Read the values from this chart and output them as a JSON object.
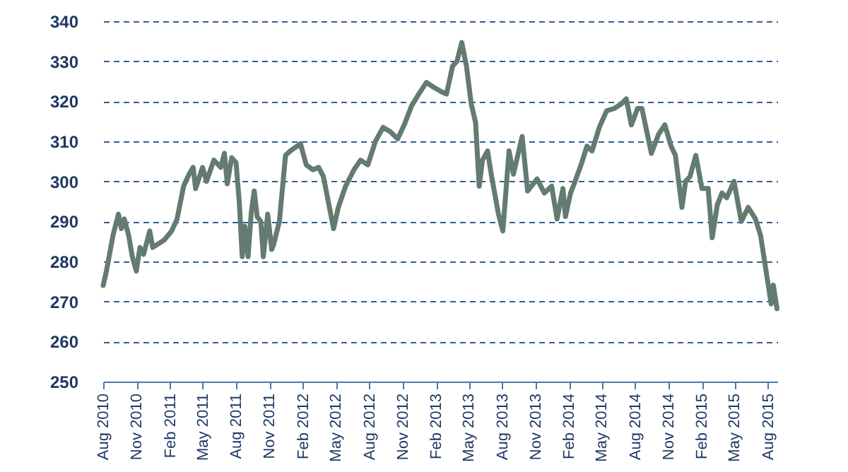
{
  "chart_data": {
    "type": "line",
    "x": [
      "2010-08-01",
      "2010-08-10",
      "2010-08-28",
      "2010-09-12",
      "2010-09-20",
      "2010-09-28",
      "2010-10-10",
      "2010-10-20",
      "2010-10-31",
      "2010-11-10",
      "2010-11-20",
      "2010-12-07",
      "2010-12-15",
      "2011-01-15",
      "2011-02-05",
      "2011-02-20",
      "2011-03-10",
      "2011-03-25",
      "2011-04-05",
      "2011-04-12",
      "2011-05-01",
      "2011-05-12",
      "2011-06-01",
      "2011-06-20",
      "2011-06-30",
      "2011-07-08",
      "2011-07-20",
      "2011-08-01",
      "2011-08-10",
      "2011-08-18",
      "2011-08-25",
      "2011-09-03",
      "2011-09-12",
      "2011-09-20",
      "2011-09-28",
      "2011-10-08",
      "2011-10-15",
      "2011-10-27",
      "2011-11-07",
      "2011-11-12",
      "2011-11-28",
      "2011-12-15",
      "2011-12-28",
      "2012-01-25",
      "2012-02-10",
      "2012-02-28",
      "2012-03-15",
      "2012-03-28",
      "2012-04-25",
      "2012-05-08",
      "2012-05-28",
      "2012-06-20",
      "2012-07-08",
      "2012-07-28",
      "2012-08-18",
      "2012-09-08",
      "2012-09-28",
      "2012-10-18",
      "2012-11-05",
      "2012-11-25",
      "2012-12-15",
      "2013-01-05",
      "2013-01-25",
      "2013-02-15",
      "2013-03-01",
      "2013-03-18",
      "2013-03-30",
      "2013-04-12",
      "2013-04-25",
      "2013-05-08",
      "2013-05-20",
      "2013-05-30",
      "2013-06-08",
      "2013-06-22",
      "2013-07-02",
      "2013-07-22",
      "2013-08-03",
      "2013-08-20",
      "2013-09-01",
      "2013-09-25",
      "2013-10-10",
      "2013-11-05",
      "2013-11-25",
      "2013-12-15",
      "2013-12-30",
      "2014-01-15",
      "2014-01-22",
      "2014-02-05",
      "2014-02-15",
      "2014-03-08",
      "2014-03-22",
      "2014-04-05",
      "2014-04-25",
      "2014-05-15",
      "2014-06-05",
      "2014-06-25",
      "2014-07-08",
      "2014-07-22",
      "2014-08-08",
      "2014-08-20",
      "2014-09-15",
      "2014-10-05",
      "2014-10-22",
      "2014-11-08",
      "2014-11-20",
      "2014-12-08",
      "2014-12-18",
      "2014-12-30",
      "2015-01-15",
      "2015-02-01",
      "2015-02-18",
      "2015-03-01",
      "2015-03-15",
      "2015-03-28",
      "2015-04-10",
      "2015-04-30",
      "2015-05-20",
      "2015-06-08",
      "2015-06-28",
      "2015-07-12",
      "2015-07-30",
      "2015-08-10",
      "2015-08-16",
      "2015-08-26"
    ],
    "series": [
      {
        "color": "#637b70",
        "values": [
          274,
          277.6,
          286.5,
          291.8,
          288.2,
          290.6,
          286.5,
          281.2,
          277.6,
          283.5,
          281.8,
          287.6,
          283.5,
          285.3,
          287.6,
          290.6,
          298.8,
          301.8,
          303.5,
          298.2,
          303.5,
          300,
          305.3,
          303.5,
          307,
          299.4,
          305.9,
          304.7,
          294.7,
          281.2,
          288.8,
          281.2,
          292.4,
          297.6,
          291.2,
          290,
          281.2,
          291.8,
          283,
          284.1,
          290,
          306.5,
          307.6,
          309.4,
          304.1,
          302.9,
          303.5,
          301.2,
          288.2,
          293.5,
          298.8,
          302.9,
          305.3,
          304.1,
          310,
          313.5,
          312.4,
          310.6,
          314.1,
          318.8,
          321.8,
          324.7,
          323.5,
          322.4,
          321.8,
          328.8,
          330,
          334.7,
          328.8,
          319.4,
          314.7,
          298.8,
          305.3,
          307.6,
          301.8,
          291.8,
          287.6,
          307.6,
          301.8,
          311.2,
          297.6,
          300.6,
          297.1,
          298.8,
          290.6,
          298.2,
          291.2,
          297.1,
          299.4,
          304.7,
          308.8,
          307.6,
          313.5,
          317.6,
          318.2,
          319.4,
          320.6,
          314.1,
          318.2,
          318.2,
          307,
          311.8,
          314.1,
          308.8,
          306.5,
          293.5,
          300,
          301.2,
          306.5,
          298.2,
          298.2,
          285.9,
          294.1,
          297.1,
          295.9,
          300,
          290,
          293.5,
          290.6,
          286.5,
          275.9,
          269.4,
          274.1,
          268.2
        ]
      }
    ],
    "xlim": [
      "2010-08-01",
      "2015-08-27"
    ],
    "xticks": [
      {
        "value": "2010-08-01",
        "label": "Aug 2010"
      },
      {
        "value": "2010-11-01",
        "label": "Nov 2010"
      },
      {
        "value": "2011-02-01",
        "label": "Feb 2011"
      },
      {
        "value": "2011-05-01",
        "label": "May 2011"
      },
      {
        "value": "2011-08-01",
        "label": "Aug 2011"
      },
      {
        "value": "2011-11-01",
        "label": "Nov 2011"
      },
      {
        "value": "2012-02-01",
        "label": "Feb 2012"
      },
      {
        "value": "2012-05-01",
        "label": "May 2012"
      },
      {
        "value": "2012-08-01",
        "label": "Aug 2012"
      },
      {
        "value": "2012-11-01",
        "label": "Nov 2012"
      },
      {
        "value": "2013-02-01",
        "label": "Feb 2013"
      },
      {
        "value": "2013-05-01",
        "label": "May 2013"
      },
      {
        "value": "2013-08-01",
        "label": "Aug 2013"
      },
      {
        "value": "2013-11-01",
        "label": "Nov 2013"
      },
      {
        "value": "2014-02-01",
        "label": "Feb 2014"
      },
      {
        "value": "2014-05-01",
        "label": "May 2014"
      },
      {
        "value": "2014-08-01",
        "label": "Aug 2014"
      },
      {
        "value": "2014-11-01",
        "label": "Nov 2014"
      },
      {
        "value": "2015-02-01",
        "label": "Feb 2015"
      },
      {
        "value": "2015-05-01",
        "label": "May 2015"
      },
      {
        "value": "2015-08-01",
        "label": "Aug 2015"
      }
    ],
    "ylim": [
      250,
      340
    ],
    "yticks": [
      250,
      260,
      270,
      280,
      290,
      300,
      310,
      320,
      330,
      340
    ],
    "grid": "y"
  }
}
